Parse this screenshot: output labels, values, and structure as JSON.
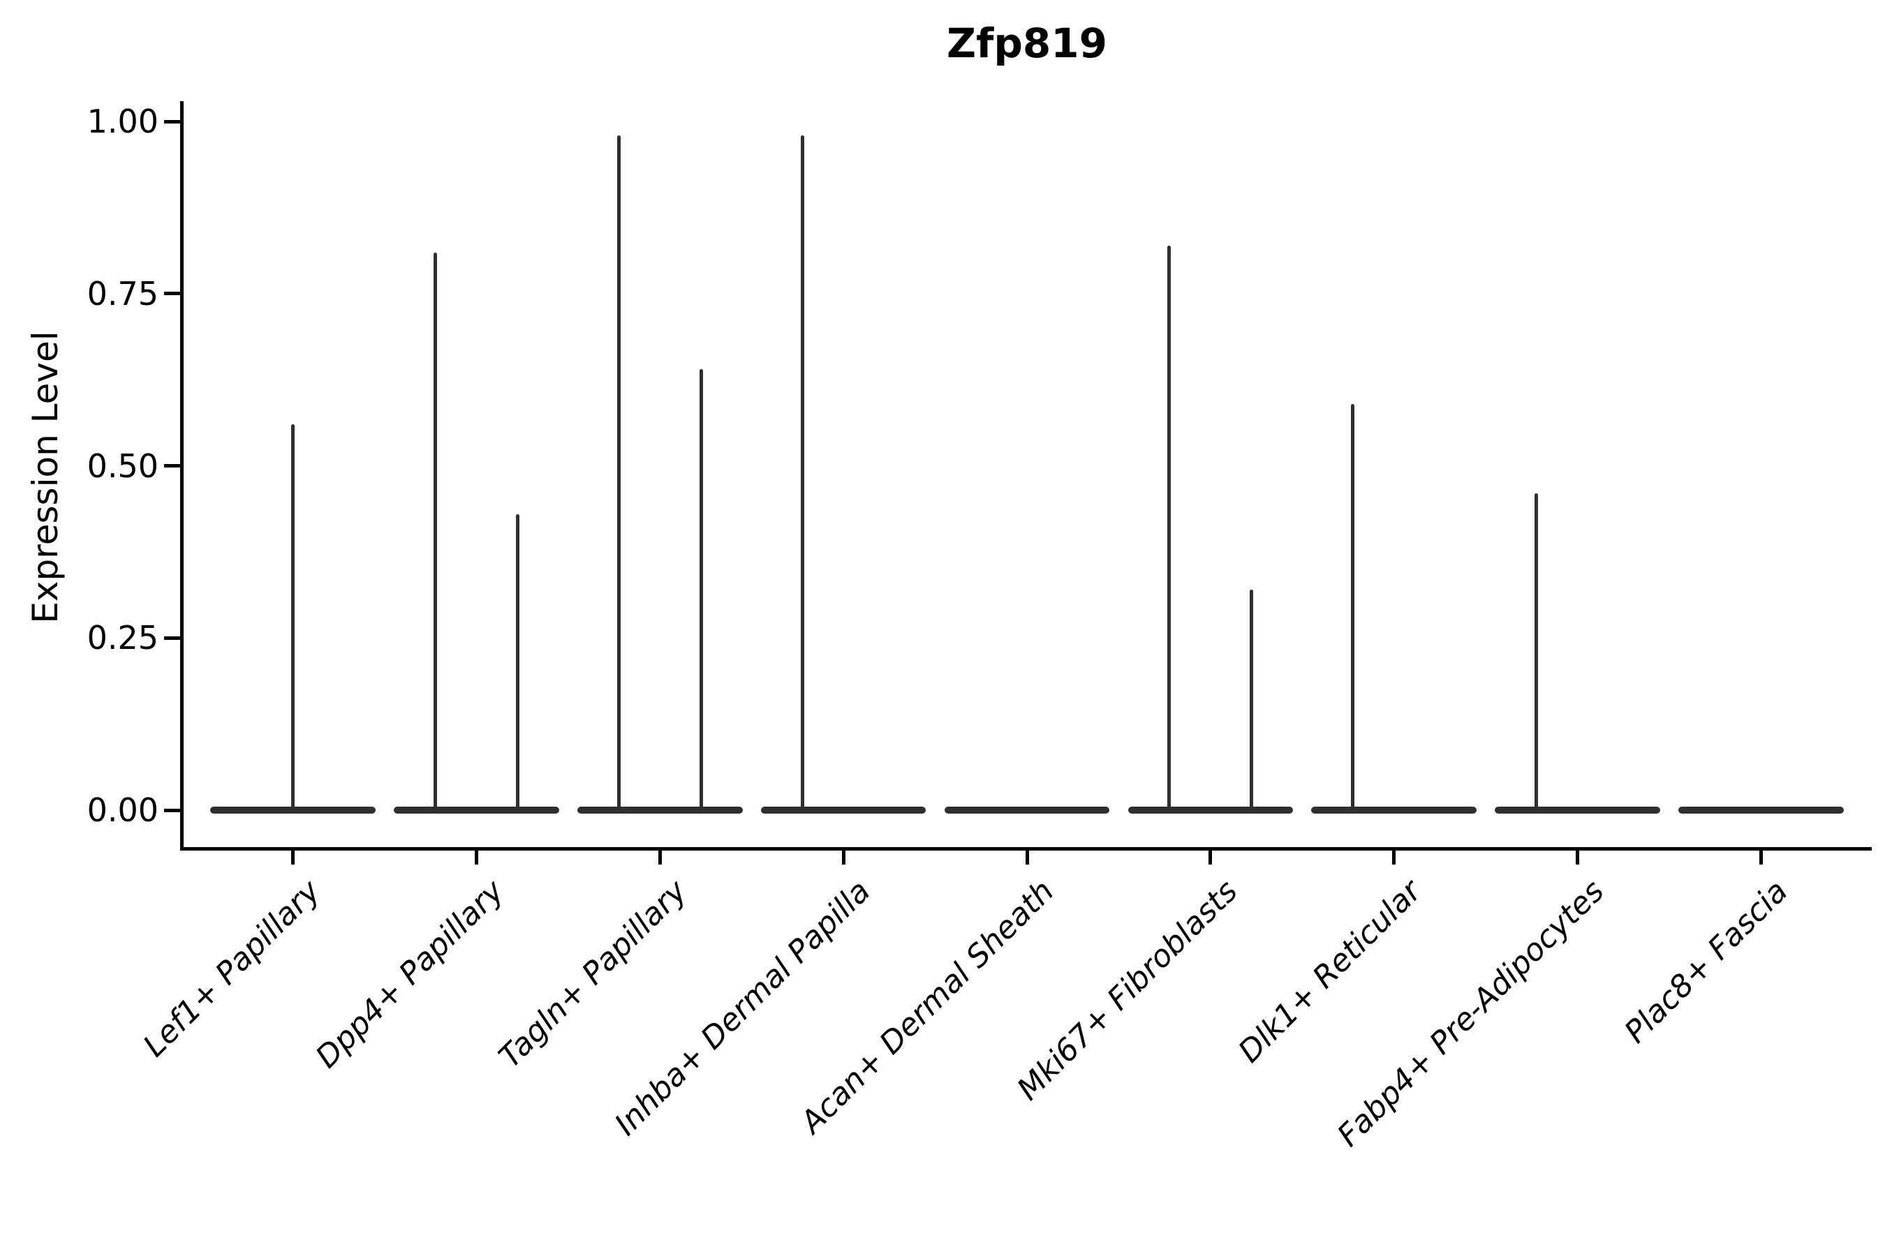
{
  "title": "Zfp819",
  "ylabel": "Expression Level",
  "chart_data": {
    "type": "violin",
    "title": "Zfp819",
    "xlabel": "",
    "ylabel": "Expression Level",
    "ylim": [
      0,
      1.0
    ],
    "yticks": [
      {
        "value": 1.0,
        "label": "1.00"
      },
      {
        "value": 0.75,
        "label": "0.75"
      },
      {
        "value": 0.5,
        "label": "0.50"
      },
      {
        "value": 0.25,
        "label": "0.25"
      },
      {
        "value": 0.0,
        "label": "0.00"
      }
    ],
    "categories": [
      "Lef1+ Papillary",
      "Dpp4+ Papillary",
      "Tagln+ Papillary",
      "Inhba+ Dermal Papilla",
      "Acan+ Dermal Sheath",
      "Mki67+ Fibroblasts",
      "Dlk1+ Reticular",
      "Fabp4+ Pre-Adipocytes",
      "Plac8+ Fascia"
    ],
    "violins": [
      {
        "category": "Lef1+ Papillary",
        "base_at_zero": true,
        "spikes": [
          {
            "pos": "center",
            "max": 0.56
          }
        ]
      },
      {
        "category": "Dpp4+ Papillary",
        "base_at_zero": true,
        "spikes": [
          {
            "pos": "left",
            "max": 0.81
          },
          {
            "pos": "right",
            "max": 0.43
          }
        ]
      },
      {
        "category": "Tagln+ Papillary",
        "base_at_zero": true,
        "spikes": [
          {
            "pos": "left",
            "max": 0.98
          },
          {
            "pos": "right",
            "max": 0.64
          }
        ]
      },
      {
        "category": "Inhba+ Dermal Papilla",
        "base_at_zero": true,
        "spikes": [
          {
            "pos": "left",
            "max": 0.98
          }
        ]
      },
      {
        "category": "Acan+ Dermal Sheath",
        "base_at_zero": true,
        "spikes": []
      },
      {
        "category": "Mki67+ Fibroblasts",
        "base_at_zero": true,
        "spikes": [
          {
            "pos": "left",
            "max": 0.82
          },
          {
            "pos": "right",
            "max": 0.32
          }
        ]
      },
      {
        "category": "Dlk1+ Reticular",
        "base_at_zero": true,
        "spikes": [
          {
            "pos": "left",
            "max": 0.59
          }
        ]
      },
      {
        "category": "Fabp4+ Pre-Adipocytes",
        "base_at_zero": true,
        "spikes": [
          {
            "pos": "left",
            "max": 0.46
          }
        ]
      },
      {
        "category": "Plac8+ Fascia",
        "base_at_zero": true,
        "spikes": []
      }
    ],
    "spike_offsets_slot_units": {
      "center": 0.0,
      "left": -0.225,
      "right": 0.225
    },
    "violin_width_slot_units": 0.9,
    "grid": false,
    "legend": "none",
    "violin_color": "#2f2f2f",
    "axis_color": "#000000",
    "text_color": "#000000"
  }
}
